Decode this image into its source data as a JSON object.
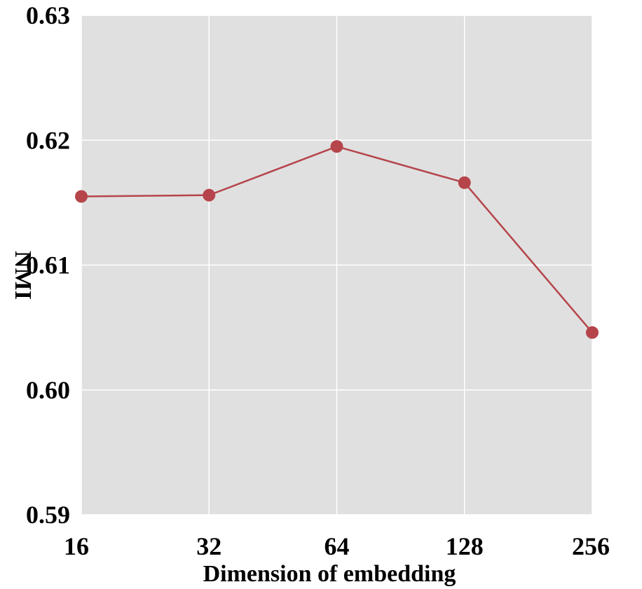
{
  "chart_data": {
    "type": "line",
    "title": "",
    "xlabel": "Dimension of embedding",
    "ylabel": "NMI",
    "x": [
      16,
      32,
      64,
      128,
      256
    ],
    "x_scale": "log2",
    "y_ticks": [
      "0.59",
      "0.60",
      "0.61",
      "0.62",
      "0.63"
    ],
    "x_ticks": [
      "16",
      "32",
      "64",
      "128",
      "256"
    ],
    "ylim": [
      0.59,
      0.63
    ],
    "grid": true,
    "series": [
      {
        "values": [
          0.6155,
          0.6156,
          0.6195,
          0.6166,
          0.6046
        ],
        "color": "#b5454b"
      }
    ],
    "background_color": "#e0e0e0",
    "grid_color": "#ffffff"
  }
}
